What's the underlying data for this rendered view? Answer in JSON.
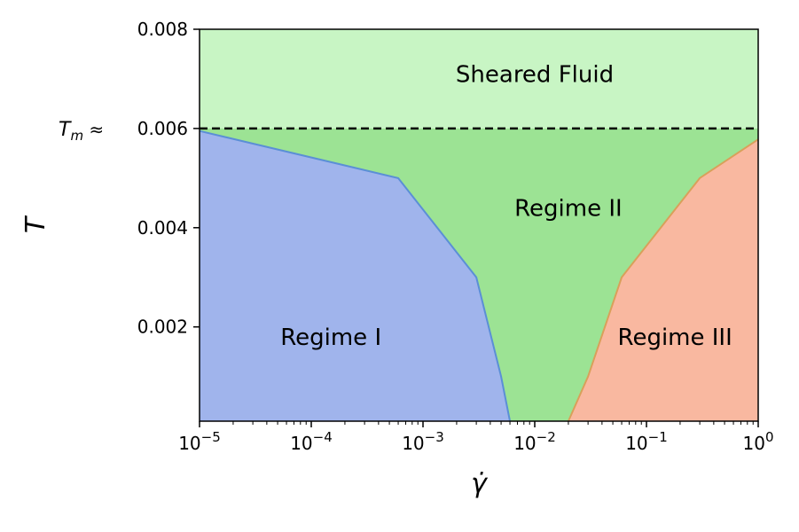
{
  "chart_data": {
    "type": "area",
    "xscale": "log",
    "xlim": [
      1e-05,
      1
    ],
    "ylim": [
      0.0001,
      0.008
    ],
    "xlabel": "γ̇",
    "ylabel": "T",
    "x_ticks": [
      {
        "value": 1e-05,
        "base": "10",
        "exp": "−5"
      },
      {
        "value": 0.0001,
        "base": "10",
        "exp": "−4"
      },
      {
        "value": 0.001,
        "base": "10",
        "exp": "−3"
      },
      {
        "value": 0.01,
        "base": "10",
        "exp": "−2"
      },
      {
        "value": 0.1,
        "base": "10",
        "exp": "−1"
      },
      {
        "value": 1,
        "base": "10",
        "exp": "0"
      }
    ],
    "y_ticks": [
      {
        "value": 0.002,
        "label": "0.002"
      },
      {
        "value": 0.004,
        "label": "0.004"
      },
      {
        "value": 0.006,
        "label": "0.006"
      },
      {
        "value": 0.008,
        "label": "0.008"
      }
    ],
    "tm_line": {
      "value": 0.006,
      "label_main": "T",
      "label_sub": "m",
      "label_suffix": " ≈"
    },
    "regions": [
      {
        "name": "Regime I",
        "label_at": [
          0.00015,
          0.0018
        ],
        "boundary_x": [
          1e-05,
          0.0006,
          0.003,
          0.005,
          0.006
        ],
        "boundary_y": [
          0.00595,
          0.005,
          0.003,
          0.001,
          0.0001
        ],
        "fill": "#a0b4ec",
        "edge": "#5b8fd6"
      },
      {
        "name": "Regime III",
        "label_at": [
          0.18,
          0.0018
        ],
        "boundary_x": [
          0.02,
          0.03,
          0.06,
          0.3,
          1
        ],
        "boundary_y": [
          0.0001,
          0.001,
          0.003,
          0.005,
          0.00578
        ],
        "fill": "#f9b8a0",
        "edge": "#d9a05a"
      },
      {
        "name": "Regime II",
        "label_at": [
          0.02,
          0.0044
        ],
        "fill": "#9ce394"
      },
      {
        "name": "Sheared Fluid",
        "label_at": [
          0.01,
          0.0071
        ],
        "fill": "#c8f5c4"
      }
    ]
  }
}
